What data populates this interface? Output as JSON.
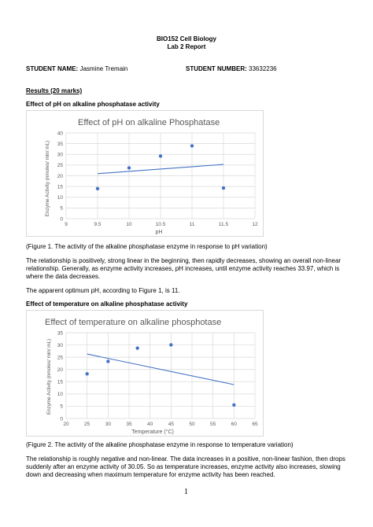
{
  "header": {
    "course": "BIO152 Cell Biology",
    "report": "Lab 2 Report"
  },
  "student": {
    "name_label": "STUDENT NAME:",
    "name": "Jasmine Tremain",
    "number_label": "STUDENT NUMBER:",
    "number": "33632236"
  },
  "results_heading": "Results (20 marks)",
  "section1": {
    "heading": "Effect of pH on alkaline phosphatase activity",
    "caption": "(Figure 1. The activity of the alkaline phosphatase enzyme in response to pH variation)",
    "para1": "The relationship is positively, strong linear in the beginning, then rapidly decreases, showing an overall non-linear relationship. Generally, as enzyme activity increases, pH increases, until enzyme activity reaches 33.97, which is where the data decreases.",
    "para2": "The apparent optimum pH, according to Figure 1, is 11."
  },
  "section2": {
    "heading": "Effect of temperature on alkaline phosphatase activity",
    "caption": "(Figure 2. The activity of the alkaline phosphatase enzyme in response to temperature variation)",
    "para1": "The relationship is roughly negative and non-linear. The data increases in a positive, non-linear fashion, then drops suddenly after an enzyme activity of 30.05. So as temperature increases, enzyme activity also increases, slowing down and decreasing when maximum temperature for enzyme activity has been reached."
  },
  "page_number": "1",
  "colors": {
    "point": "#4472c4",
    "trend": "#4472c4",
    "grid": "#d9d9d9",
    "axis_text": "#595959"
  },
  "chart_data": [
    {
      "type": "scatter",
      "title": "Effect of pH on alkaline Phosphatase",
      "xlabel": "pH",
      "ylabel": "Enzyme Activity (nmoles/ min/ mL)",
      "xlim": [
        9,
        12
      ],
      "ylim": [
        0,
        40
      ],
      "xticks": [
        "9",
        "9.5",
        "10",
        "10.5",
        "11",
        "11.5",
        "12"
      ],
      "yticks": [
        "0",
        "5",
        "10",
        "15",
        "20",
        "25",
        "30",
        "35",
        "40"
      ],
      "grid": true,
      "points": [
        {
          "x": 9.5,
          "y": 14
        },
        {
          "x": 10,
          "y": 23.7
        },
        {
          "x": 10.5,
          "y": 29.2
        },
        {
          "x": 11,
          "y": 33.97
        },
        {
          "x": 11.5,
          "y": 14.3
        }
      ],
      "trendline": {
        "x": [
          9.5,
          11.5
        ],
        "y": [
          21,
          25.3
        ]
      }
    },
    {
      "type": "scatter",
      "title": "Effect of temperature on alkaline phosphotase",
      "xlabel": "Temperature (°C)",
      "ylabel": "Enzyme Activity (nmoles/ min/ mL)",
      "xlim": [
        20,
        65
      ],
      "ylim": [
        0,
        35
      ],
      "xticks": [
        "20",
        "25",
        "30",
        "35",
        "40",
        "45",
        "50",
        "55",
        "60",
        "65"
      ],
      "yticks": [
        "0",
        "5",
        "10",
        "15",
        "20",
        "25",
        "30",
        "35"
      ],
      "grid": true,
      "points": [
        {
          "x": 25,
          "y": 18.2
        },
        {
          "x": 30,
          "y": 23.3
        },
        {
          "x": 37,
          "y": 28.7
        },
        {
          "x": 45,
          "y": 30.05
        },
        {
          "x": 60,
          "y": 5.5
        }
      ],
      "trendline": {
        "x": [
          25,
          60
        ],
        "y": [
          26.3,
          13.8
        ]
      }
    }
  ]
}
